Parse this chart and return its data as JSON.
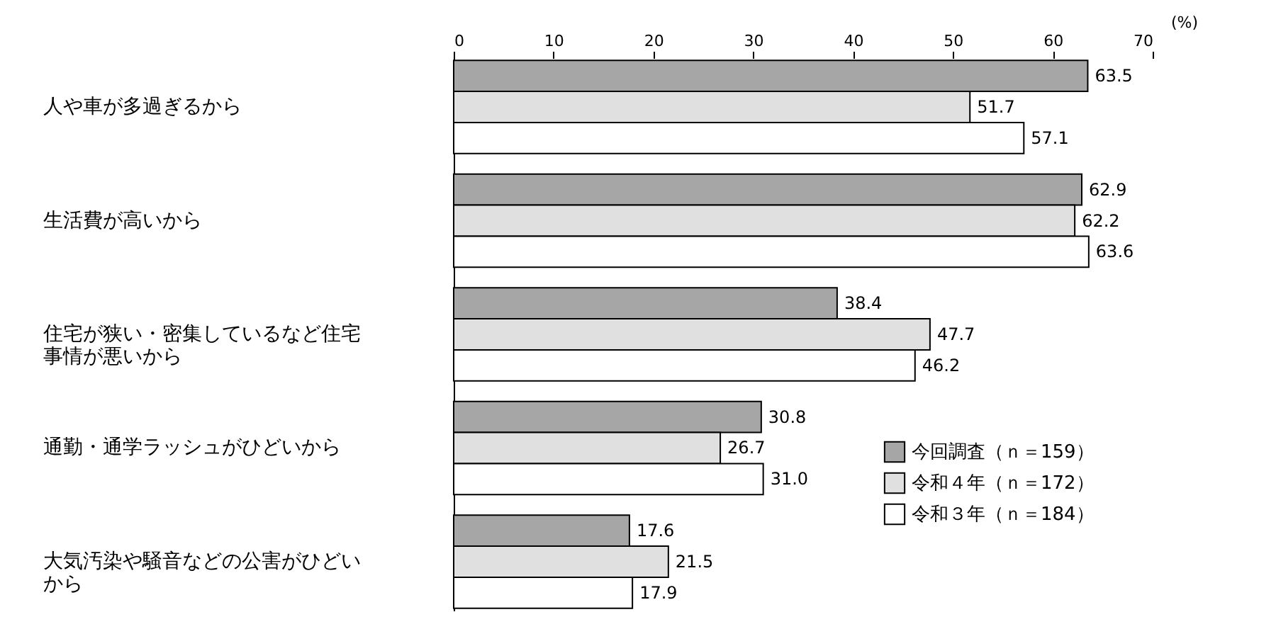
{
  "chart_data": {
    "type": "bar",
    "orientation": "horizontal",
    "xlabel": "(%)",
    "categories": [
      "人や車が多過ぎるから",
      "生活費が高いから",
      "住宅が狭い・密集しているなど住宅事情が悪いから",
      "通勤・通学ラッシュがひどいから",
      "大気汚染や騒音などの公害がひどいから"
    ],
    "series": [
      {
        "name": "今回調査（ｎ＝159）",
        "color": "#a6a6a6",
        "values": [
          63.5,
          62.9,
          38.4,
          30.8,
          17.6
        ],
        "value_labels": [
          "63.5",
          "62.9",
          "38.4",
          "30.8",
          "17.6"
        ]
      },
      {
        "name": "令和４年（ｎ＝172）",
        "color": "#e0e0e0",
        "values": [
          51.7,
          62.2,
          47.7,
          26.7,
          21.5
        ],
        "value_labels": [
          "51.7",
          "62.2",
          "47.7",
          "26.7",
          "21.5"
        ]
      },
      {
        "name": "令和３年（ｎ＝184）",
        "color": "#ffffff",
        "values": [
          57.1,
          63.6,
          46.2,
          31.0,
          17.9
        ],
        "value_labels": [
          "57.1",
          "63.6",
          "46.2",
          "31.0",
          "17.9"
        ]
      }
    ],
    "xlim": [
      0,
      70
    ],
    "xticks": [
      0,
      10,
      20,
      30,
      40,
      50,
      60,
      70
    ],
    "legend": "bottom right",
    "grid": false
  }
}
